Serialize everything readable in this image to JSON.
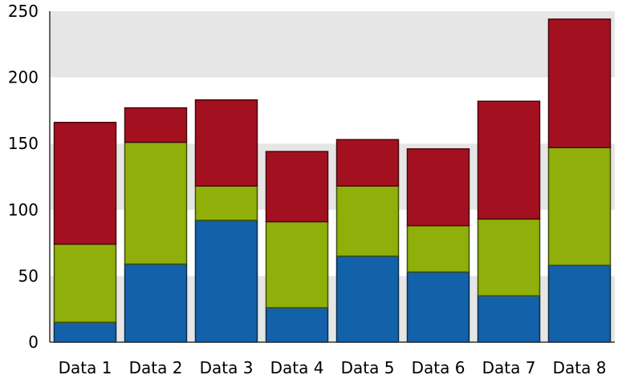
{
  "chart_data": {
    "type": "bar",
    "stacked": true,
    "categories": [
      "Data 1",
      "Data 2",
      "Data 3",
      "Data 4",
      "Data 5",
      "Data 6",
      "Data 7",
      "Data 8"
    ],
    "series": [
      {
        "color": "#1361a9",
        "values": [
          15,
          59,
          92,
          26,
          65,
          53,
          35,
          58
        ]
      },
      {
        "color": "#91af0b",
        "values": [
          59,
          92,
          26,
          65,
          53,
          35,
          58,
          89
        ]
      },
      {
        "color": "#a31120",
        "values": [
          92,
          26,
          65,
          53,
          35,
          58,
          89,
          97
        ]
      }
    ],
    "ylim": [
      0,
      250
    ],
    "yticks": [
      0,
      50,
      100,
      150,
      200,
      250
    ],
    "band_colors": [
      "#e6e6e6",
      "#ffffff"
    ],
    "grid": false,
    "title": "",
    "xlabel": "",
    "ylabel": ""
  }
}
